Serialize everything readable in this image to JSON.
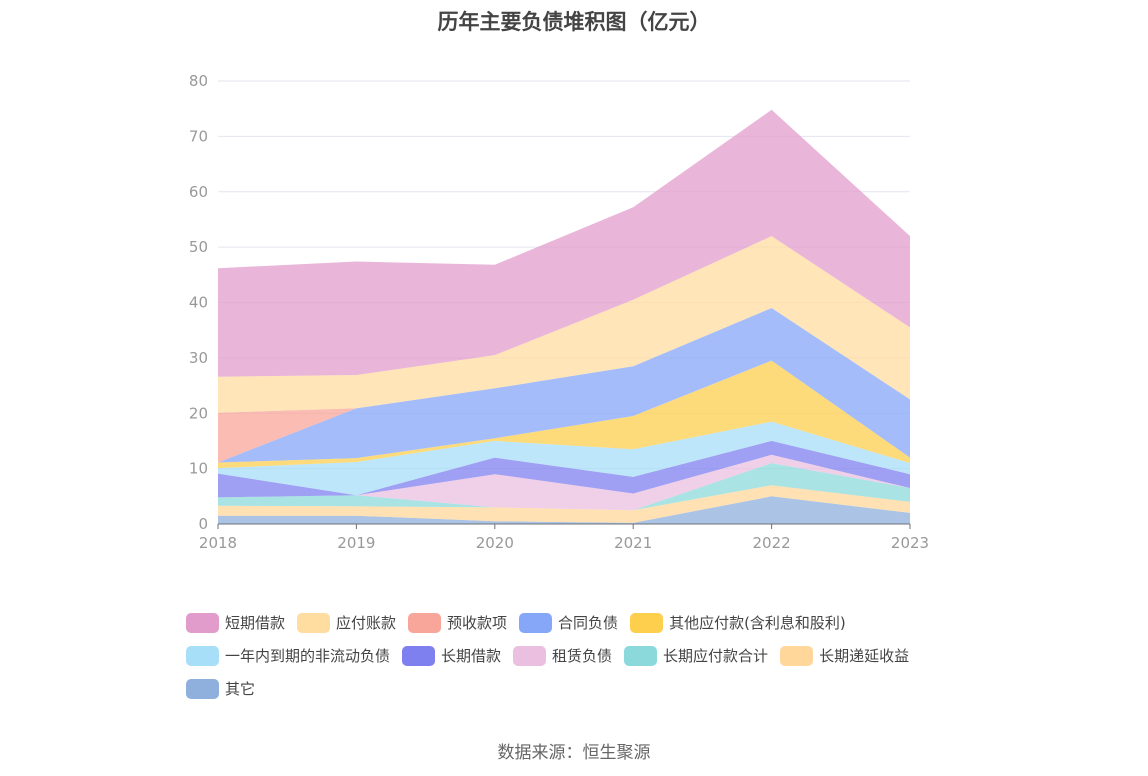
{
  "chart_data": {
    "type": "area",
    "stacked": true,
    "title": "历年主要负债堆积图（亿元）",
    "x": [
      "2018",
      "2019",
      "2020",
      "2021",
      "2022",
      "2023"
    ],
    "ylim": [
      0,
      80
    ],
    "yticks": [
      0,
      10,
      20,
      30,
      40,
      50,
      60,
      70,
      80
    ],
    "grid": true,
    "legend_position": "bottom",
    "series": [
      {
        "name": "其它",
        "color": "#8fb0dd",
        "values": [
          1.5,
          1.5,
          0.5,
          0.2,
          5.0,
          2.0
        ]
      },
      {
        "name": "长期递延收益",
        "color": "#ffd79a",
        "values": [
          1.8,
          1.7,
          2.5,
          2.3,
          2.0,
          2.0
        ]
      },
      {
        "name": "长期应付款合计",
        "color": "#8cd9db",
        "values": [
          1.5,
          2.0,
          0.0,
          0.0,
          4.0,
          2.5
        ]
      },
      {
        "name": "租赁负债",
        "color": "#ebbfe0",
        "values": [
          0.0,
          0.0,
          6.0,
          3.0,
          1.5,
          0.0
        ]
      },
      {
        "name": "长期借款",
        "color": "#7f80f0",
        "values": [
          4.3,
          0.0,
          3.0,
          3.0,
          2.5,
          2.5
        ]
      },
      {
        "name": "一年内到期的非流动负债",
        "color": "#a7def8",
        "values": [
          1.0,
          6.0,
          3.0,
          5.0,
          3.5,
          2.0
        ]
      },
      {
        "name": "其他应付款(含利息和股利)",
        "color": "#fecf4d",
        "values": [
          1.0,
          0.7,
          0.5,
          6.0,
          11.0,
          1.0
        ]
      },
      {
        "name": "合同负债",
        "color": "#86a7f8",
        "values": [
          0.0,
          9.0,
          9.0,
          9.0,
          9.5,
          10.5
        ]
      },
      {
        "name": "预收款项",
        "color": "#f8a69a",
        "values": [
          9.0,
          0.0,
          0.0,
          0.0,
          0.0,
          0.0
        ]
      },
      {
        "name": "应付账款",
        "color": "#ffdca0",
        "values": [
          6.5,
          6.0,
          6.0,
          12.0,
          13.0,
          13.0
        ]
      },
      {
        "name": "短期借款",
        "color": "#e19ccc",
        "values": [
          19.6,
          20.5,
          16.3,
          16.7,
          22.8,
          16.5
        ]
      }
    ],
    "legend_order": [
      "短期借款",
      "应付账款",
      "预收款项",
      "合同负债",
      "其他应付款(含利息和股利)",
      "一年内到期的非流动负债",
      "长期借款",
      "租赁负债",
      "长期应付款合计",
      "长期递延收益",
      "其它"
    ]
  },
  "source": "数据来源：恒生聚源"
}
